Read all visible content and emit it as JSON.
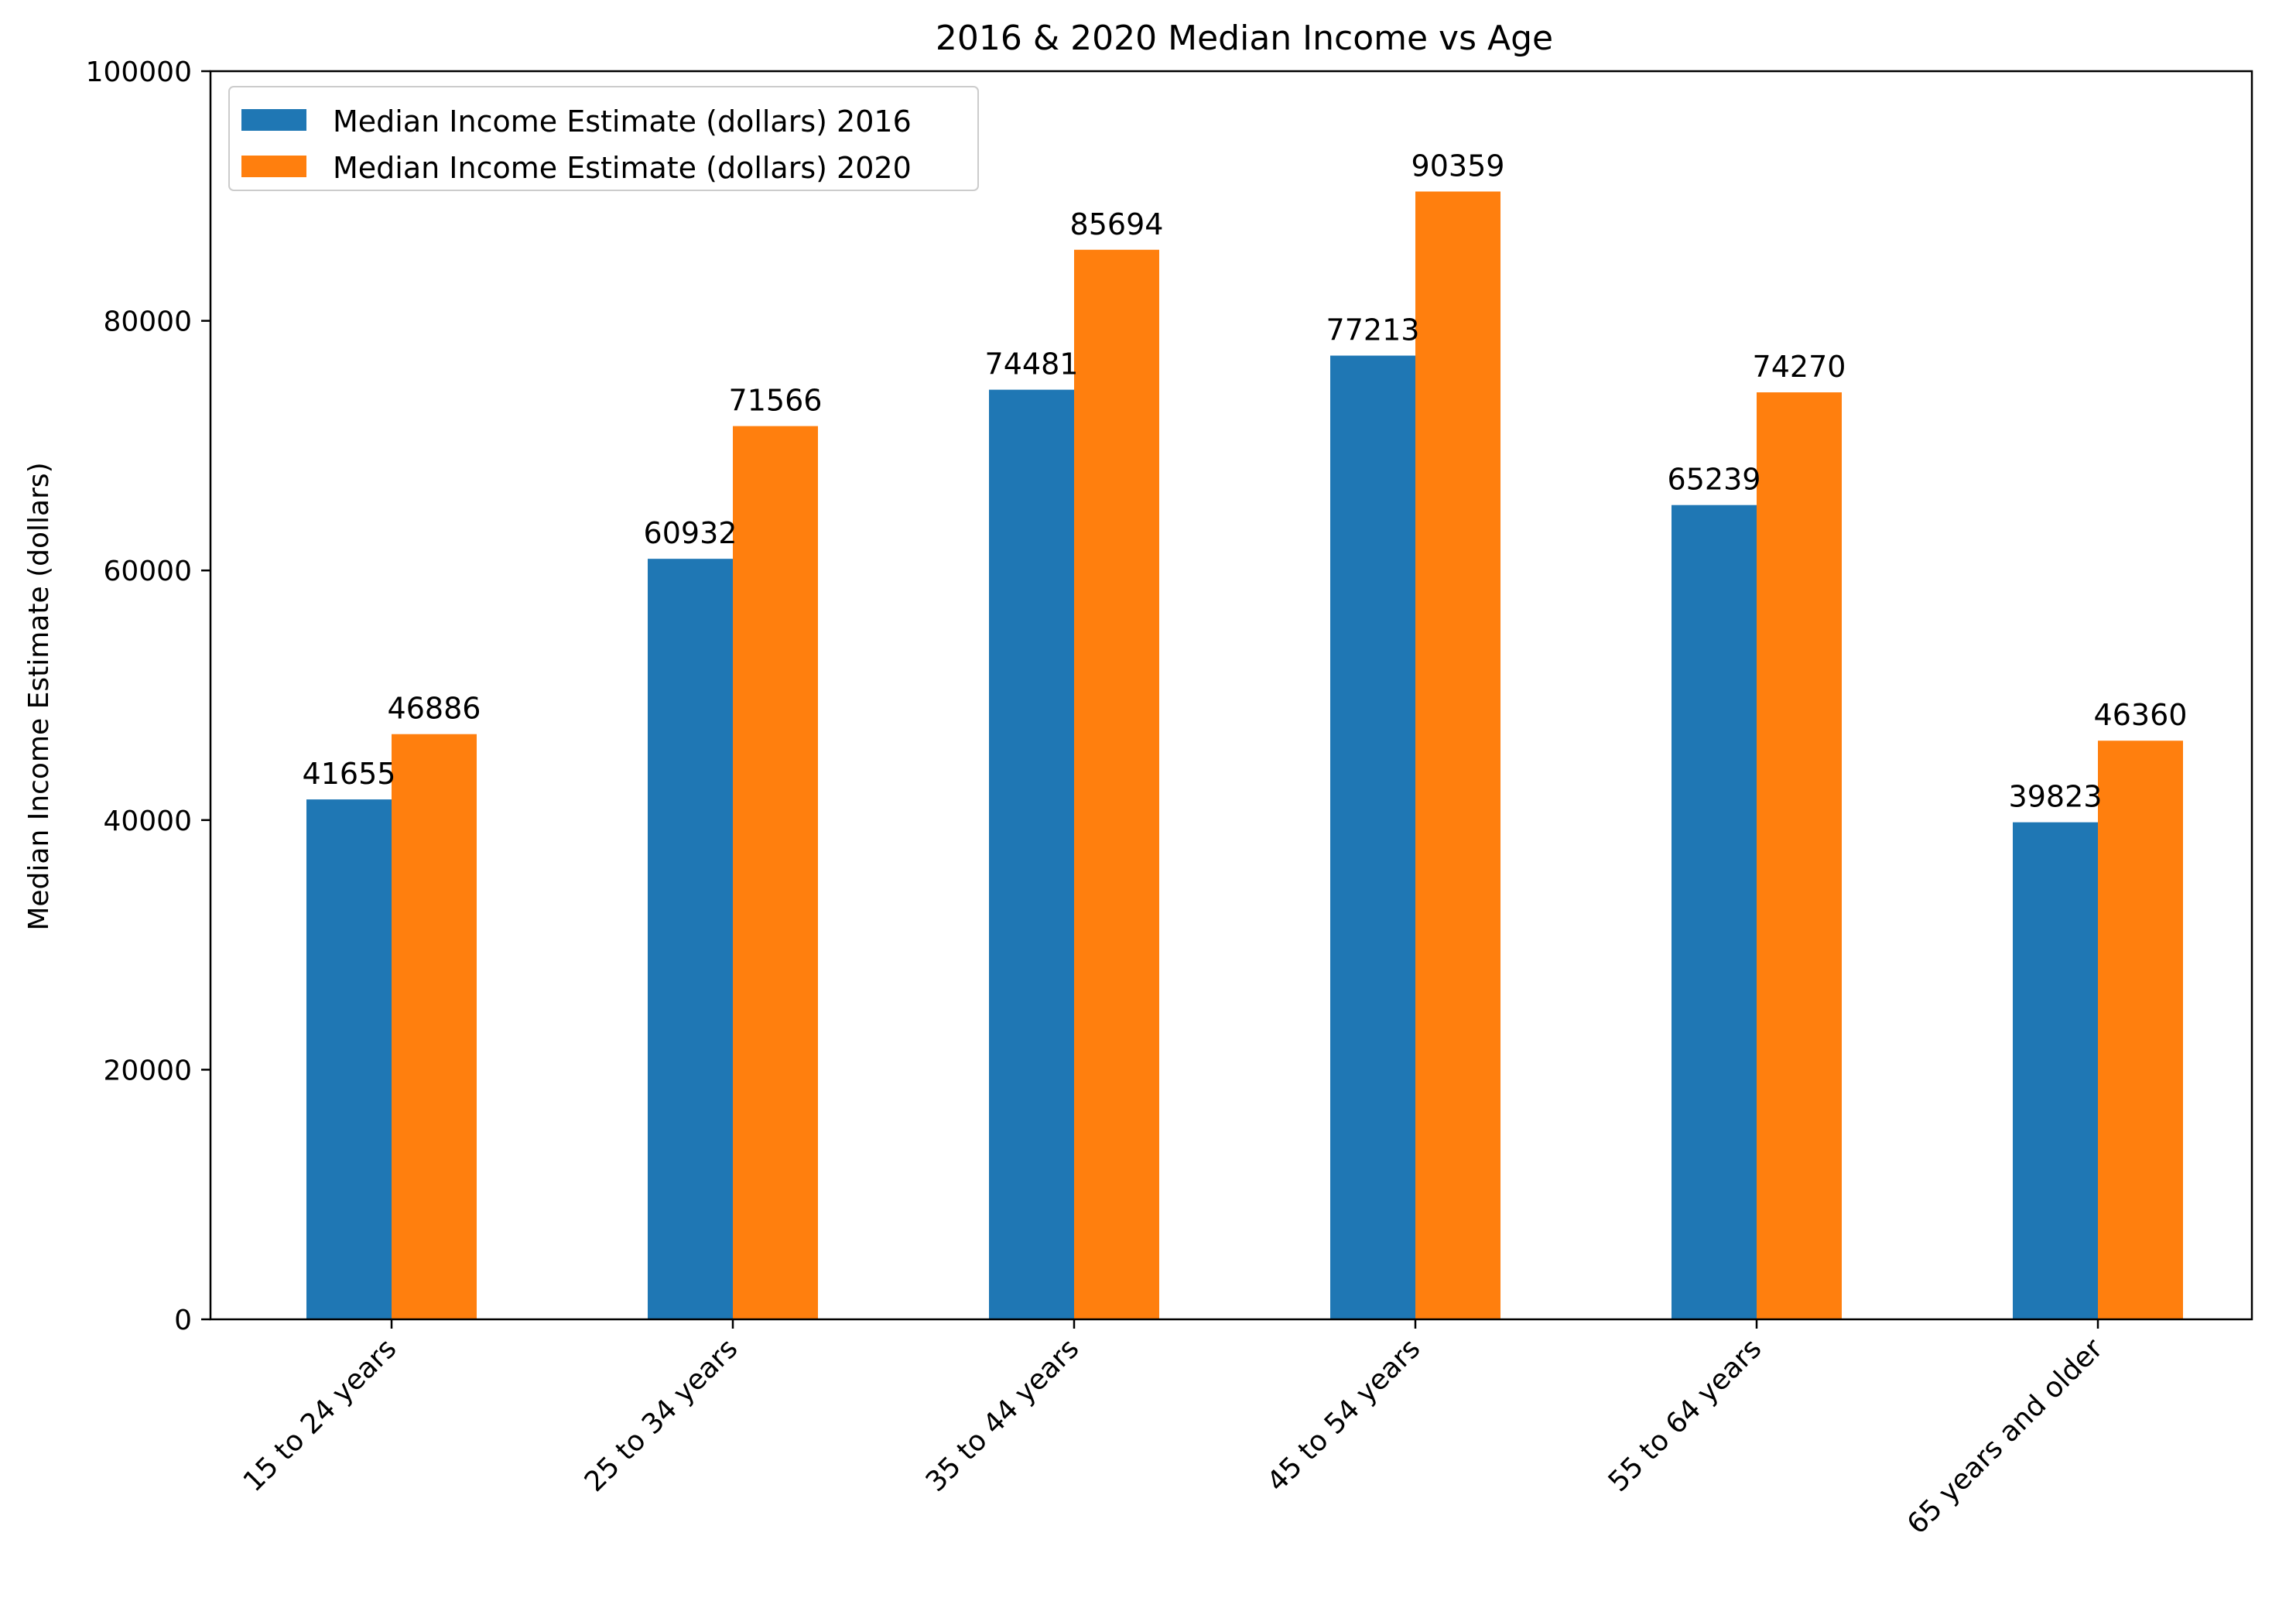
{
  "chart_data": {
    "type": "bar",
    "title": "2016 & 2020 Median Income vs Age",
    "xlabel": "",
    "ylabel": "Median Income Estimate (dollars)",
    "ylim": [
      0,
      100000
    ],
    "yticks": [
      "0",
      "20000",
      "40000",
      "60000",
      "80000",
      "100000"
    ],
    "ytick_values": [
      0,
      20000,
      40000,
      60000,
      80000,
      100000
    ],
    "categories": [
      "15 to 24 years",
      "25 to 34 years",
      "35 to 44 years",
      "45 to 54 years",
      "55 to 64 years",
      "65 years and older"
    ],
    "series": [
      {
        "name": "Median Income Estimate (dollars) 2016",
        "color": "#1f77b4",
        "values": [
          41655,
          60932,
          74481,
          77213,
          65239,
          39823
        ],
        "labels": [
          "41655",
          "60932",
          "74481",
          "77213",
          "65239",
          "39823"
        ]
      },
      {
        "name": "Median Income Estimate (dollars) 2020",
        "color": "#ff7f0e",
        "values": [
          46886,
          71566,
          85694,
          90359,
          74270,
          46360
        ],
        "labels": [
          "46886",
          "71566",
          "85694",
          "90359",
          "74270",
          "46360"
        ]
      }
    ],
    "legend_position": "upper-left",
    "grid": false
  }
}
